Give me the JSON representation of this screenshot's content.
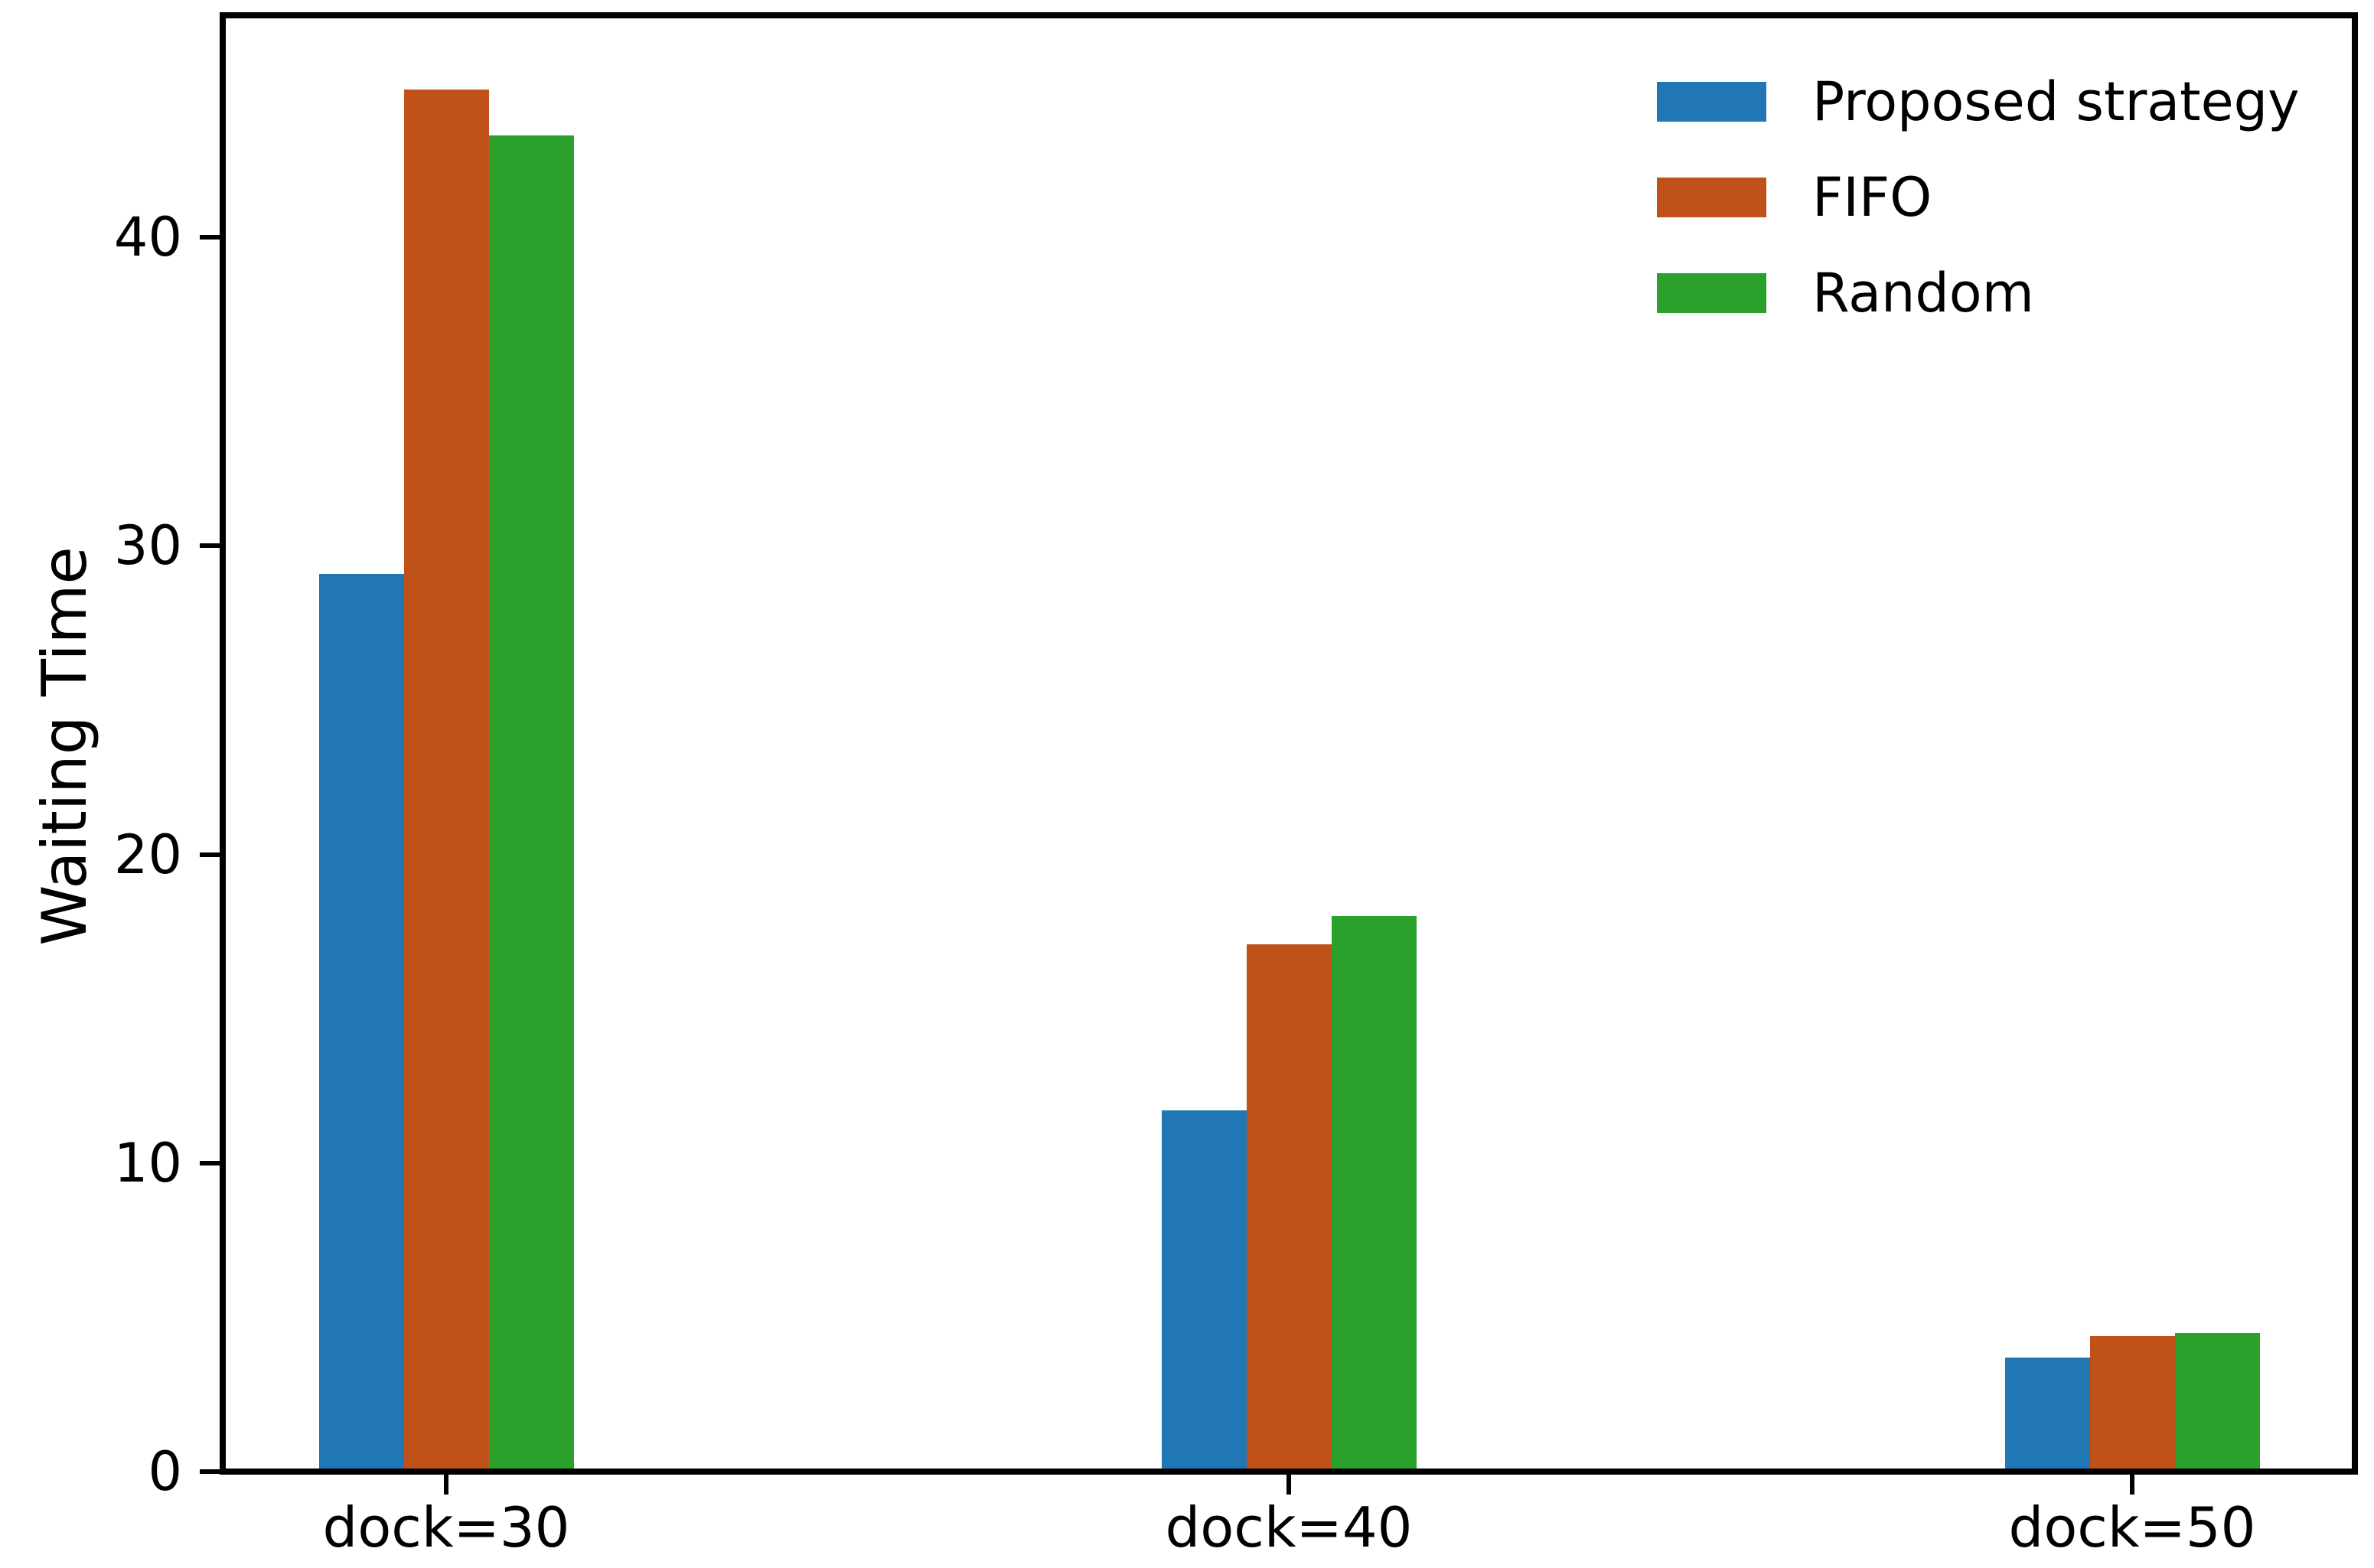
{
  "chart_data": {
    "type": "bar",
    "title": "",
    "xlabel": "",
    "ylabel": "Waiting Time",
    "categories": [
      "dock=30",
      "dock=40",
      "dock=50"
    ],
    "series": [
      {
        "name": "Proposed strategy",
        "color": "#2176b4",
        "values": [
          29.0,
          11.6,
          3.6
        ]
      },
      {
        "name": "FIFO",
        "color": "#c05118",
        "values": [
          44.7,
          17.0,
          4.3
        ]
      },
      {
        "name": "Random",
        "color": "#2aa12b",
        "values": [
          43.2,
          17.9,
          4.4
        ]
      }
    ],
    "yticks": [
      0,
      10,
      20,
      30,
      40
    ],
    "ylim": [
      0,
      47.2
    ],
    "grid": false,
    "legend_position": "upper right",
    "axis_color": "#000000",
    "background_color": "#ffffff"
  }
}
